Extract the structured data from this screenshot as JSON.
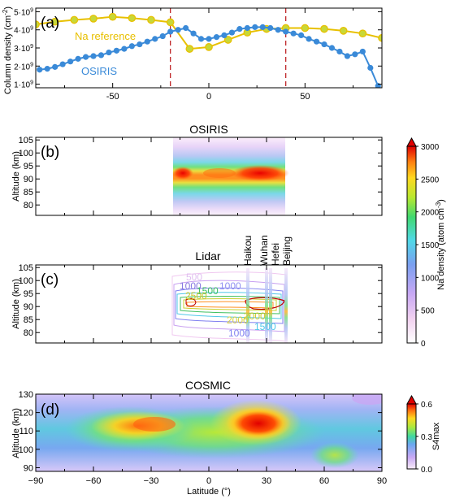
{
  "panels": {
    "a": {
      "label": "(a)",
      "ylabel_main": "Column density (cm",
      "ylabel_sup": "-2",
      "ylabel_close": ")",
      "yticks": [
        {
          "value": 1,
          "mant": "1·10",
          "exp": "9"
        },
        {
          "value": 2,
          "mant": "2·10",
          "exp": "9"
        },
        {
          "value": 3,
          "mant": "3·10",
          "exp": "9"
        },
        {
          "value": 4,
          "mant": "4·10",
          "exp": "9"
        },
        {
          "value": 5,
          "mant": "5·10",
          "exp": "9"
        }
      ],
      "xticks": [
        -50,
        0,
        50
      ]
    },
    "b": {
      "label": "(b)",
      "title": "OSIRIS",
      "ylabel": "Altitude (km)",
      "yticks": [
        80,
        85,
        90,
        95,
        100,
        105
      ]
    },
    "c": {
      "label": "(c)",
      "title": "Lidar",
      "ylabel": "Altitude (km)",
      "yticks": [
        80,
        85,
        90,
        95,
        100,
        105
      ],
      "stations": [
        "Haikou",
        "Wuhan",
        "Hefei",
        "Beijing"
      ],
      "contour_labels": [
        "500",
        "1000",
        "1000",
        "1500",
        "2000",
        "2500",
        "2000",
        "1500"
      ]
    },
    "d": {
      "label": "(d)",
      "title": "COSMIC",
      "ylabel": "Altitude (km)",
      "xlabel": "Latitude (°)",
      "yticks": [
        90,
        100,
        110,
        120,
        130
      ],
      "xticks": [
        "−90",
        "−60",
        "−30",
        "0",
        "30",
        "60",
        "90"
      ]
    }
  },
  "colorbars": {
    "na": {
      "label_main": "Na density (atom cm",
      "label_sup": "-3",
      "label_close": ")",
      "ticks": [
        "0",
        "500",
        "1000",
        "1500",
        "2000",
        "2500",
        "3000"
      ]
    },
    "s4": {
      "label": "S4max",
      "ticks": [
        "0.0",
        "0.3",
        "0.6"
      ]
    }
  },
  "chart_data": [
    {
      "type": "line",
      "panel": "a",
      "xlabel": "",
      "ylabel": "Column density (cm^-2)",
      "xlim": [
        -90,
        90
      ],
      "ylim": [
        0.8,
        5.2
      ],
      "ref_lines_x": [
        -20,
        40
      ],
      "series": [
        {
          "name": "Na reference",
          "color": "#e8c000",
          "x": [
            -90,
            -80,
            -70,
            -60,
            -50,
            -40,
            -30,
            -20,
            -10,
            0,
            10,
            20,
            30,
            40,
            50,
            60,
            70,
            80,
            90
          ],
          "y": [
            4.3,
            4.45,
            4.55,
            4.62,
            4.72,
            4.65,
            4.55,
            4.42,
            2.95,
            3.05,
            3.45,
            3.85,
            4.05,
            4.1,
            4.1,
            4.05,
            3.95,
            3.8,
            3.55
          ]
        },
        {
          "name": "OSIRIS",
          "color": "#3a8ad8",
          "x": [
            -88,
            -84,
            -80,
            -76,
            -72,
            -68,
            -64,
            -60,
            -56,
            -52,
            -48,
            -44,
            -40,
            -36,
            -32,
            -28,
            -24,
            -20,
            -16,
            -12,
            -8,
            -4,
            0,
            4,
            8,
            12,
            16,
            20,
            24,
            28,
            32,
            36,
            40,
            44,
            48,
            52,
            56,
            60,
            64,
            68,
            72,
            76,
            80,
            84,
            88
          ],
          "y": [
            1.8,
            1.85,
            1.95,
            2.1,
            2.25,
            2.4,
            2.5,
            2.55,
            2.6,
            2.75,
            2.85,
            2.95,
            3.1,
            3.2,
            3.35,
            3.5,
            3.65,
            3.9,
            4.0,
            4.1,
            3.8,
            3.5,
            3.5,
            3.6,
            3.7,
            3.85,
            4.05,
            4.1,
            4.15,
            4.15,
            4.1,
            4.0,
            3.9,
            3.8,
            3.7,
            3.5,
            3.35,
            3.2,
            3.0,
            2.8,
            2.55,
            2.65,
            2.8,
            1.9,
            0.9
          ]
        }
      ]
    },
    {
      "type": "heatmap",
      "panel": "b",
      "title": "OSIRIS",
      "ylabel": "Altitude (km)",
      "xlim": [
        -90,
        90
      ],
      "ylim": [
        76,
        106
      ],
      "data_extent_x": [
        -20,
        40
      ],
      "colorbar": [
        0,
        3000
      ]
    },
    {
      "type": "heatmap",
      "panel": "c",
      "title": "Lidar",
      "ylabel": "Altitude (km)",
      "xlim": [
        -90,
        90
      ],
      "ylim": [
        76,
        106
      ],
      "station_lat": [
        20,
        30.5,
        31.8,
        40
      ]
    },
    {
      "type": "heatmap",
      "panel": "d",
      "title": "COSMIC",
      "xlabel": "Latitude (°)",
      "ylabel": "Altitude (km)",
      "xlim": [
        -90,
        90
      ],
      "ylim": [
        88,
        130
      ],
      "colorbar": [
        0.0,
        0.6
      ]
    }
  ]
}
